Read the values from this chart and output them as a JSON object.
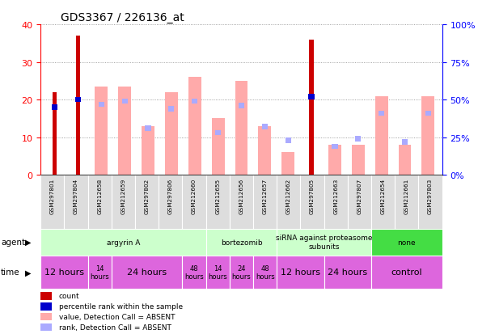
{
  "title": "GDS3367 / 226136_at",
  "samples": [
    "GSM297801",
    "GSM297804",
    "GSM212658",
    "GSM212659",
    "GSM297802",
    "GSM297806",
    "GSM212660",
    "GSM212655",
    "GSM212656",
    "GSM212657",
    "GSM212662",
    "GSM297805",
    "GSM212663",
    "GSM297807",
    "GSM212654",
    "GSM212661",
    "GSM297803"
  ],
  "count_values": [
    22,
    37,
    0,
    0,
    0,
    0,
    0,
    0,
    0,
    0,
    0,
    36,
    0,
    0,
    0,
    0,
    0
  ],
  "rank_values_pct": [
    45,
    50,
    0,
    0,
    0,
    0,
    0,
    0,
    0,
    0,
    0,
    52,
    0,
    0,
    0,
    0,
    0
  ],
  "absent_value_bars": [
    0,
    0,
    23.5,
    23.5,
    13,
    22,
    26,
    15,
    25,
    13,
    6,
    0,
    8,
    8,
    21,
    8,
    21
  ],
  "absent_rank_bars_pct": [
    0,
    0,
    47,
    49,
    31,
    44,
    49,
    28,
    46,
    32,
    23,
    0,
    19,
    24,
    41,
    22,
    41
  ],
  "ylim_left": [
    0,
    40
  ],
  "ylim_right": [
    0,
    100
  ],
  "yticks_left": [
    0,
    10,
    20,
    30,
    40
  ],
  "yticks_right": [
    0,
    25,
    50,
    75,
    100
  ],
  "ytick_labels_right": [
    "0%",
    "25%",
    "50%",
    "75%",
    "100%"
  ],
  "count_color": "#cc0000",
  "rank_color": "#0000cc",
  "absent_value_color": "#ffaaaa",
  "absent_rank_color": "#aaaaff",
  "grid_color": "#888888",
  "sample_bg_color": "#dddddd",
  "agent_groups": [
    {
      "label": "argyrin A",
      "start": 0,
      "end": 7,
      "color": "#ccffcc"
    },
    {
      "label": "bortezomib",
      "start": 7,
      "end": 10,
      "color": "#ccffcc"
    },
    {
      "label": "siRNA against proteasome\nsubunits",
      "start": 10,
      "end": 14,
      "color": "#ccffcc"
    },
    {
      "label": "none",
      "start": 14,
      "end": 17,
      "color": "#44dd44"
    }
  ],
  "time_groups": [
    {
      "label": "12 hours",
      "start": 0,
      "end": 2,
      "fontsize": 8
    },
    {
      "label": "14\nhours",
      "start": 2,
      "end": 3,
      "fontsize": 6
    },
    {
      "label": "24 hours",
      "start": 3,
      "end": 6,
      "fontsize": 8
    },
    {
      "label": "48\nhours",
      "start": 6,
      "end": 7,
      "fontsize": 6
    },
    {
      "label": "14\nhours",
      "start": 7,
      "end": 8,
      "fontsize": 6
    },
    {
      "label": "24\nhours",
      "start": 8,
      "end": 9,
      "fontsize": 6
    },
    {
      "label": "48\nhours",
      "start": 9,
      "end": 10,
      "fontsize": 6
    },
    {
      "label": "12 hours",
      "start": 10,
      "end": 12,
      "fontsize": 8
    },
    {
      "label": "24 hours",
      "start": 12,
      "end": 14,
      "fontsize": 8
    },
    {
      "label": "control",
      "start": 14,
      "end": 17,
      "fontsize": 8
    }
  ],
  "legend_items": [
    {
      "color": "#cc0000",
      "label": "count"
    },
    {
      "color": "#0000cc",
      "label": "percentile rank within the sample"
    },
    {
      "color": "#ffaaaa",
      "label": "value, Detection Call = ABSENT"
    },
    {
      "color": "#aaaaff",
      "label": "rank, Detection Call = ABSENT"
    }
  ]
}
